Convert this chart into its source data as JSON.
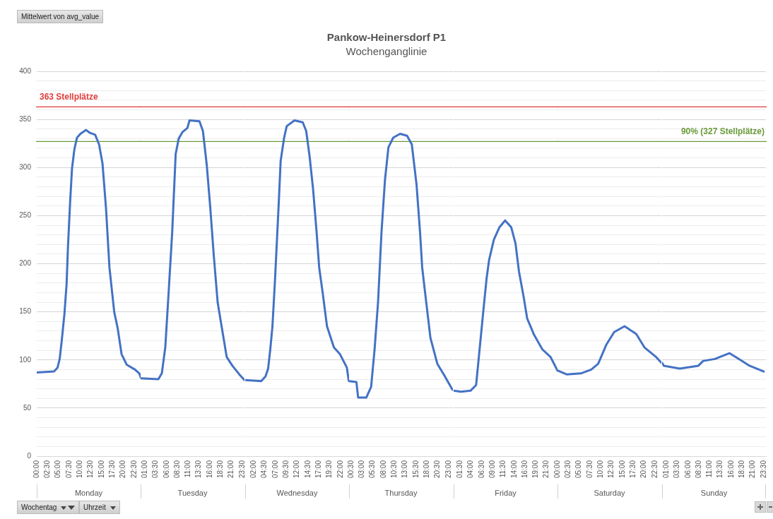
{
  "chart_data": [
    {
      "type": "line",
      "xlabel": "Monday",
      "x": [
        0,
        4.0,
        4.8,
        5.3,
        5.8,
        6.4,
        6.9,
        7.2,
        7.7,
        8.15,
        8.7,
        9.3,
        10.1,
        11.4,
        12.3,
        13.5,
        14.4,
        15.2,
        16.0,
        16.8,
        17.9,
        18.7,
        19.6,
        20.8,
        22.7,
        23.7,
        24
      ],
      "series": [
        {
          "color": "#4472c4",
          "values": [
            87,
            88,
            92,
            101,
            121,
            148,
            179,
            216,
            263,
            299,
            319,
            331,
            335,
            339,
            336,
            334,
            324,
            304,
            258,
            196,
            150,
            133,
            106,
            95,
            90,
            86,
            82
          ]
        }
      ],
      "xlim": [
        0,
        24
      ],
      "xticks": [
        {
          "value": 0,
          "label": "00:00"
        },
        {
          "value": 2.5,
          "label": "02:30"
        },
        {
          "value": 5,
          "label": "05:00"
        },
        {
          "value": 7.5,
          "label": "07:30"
        },
        {
          "value": 10,
          "label": "10:00"
        },
        {
          "value": 12.5,
          "label": "12:30"
        },
        {
          "value": 15,
          "label": "15:00"
        },
        {
          "value": 17.5,
          "label": "17:30"
        },
        {
          "value": 20,
          "label": "20:00"
        },
        {
          "value": 22.5,
          "label": "22:30"
        }
      ],
      "ylim": [
        0,
        400
      ],
      "yticks": [
        0,
        {
          "value": 10,
          "label": null
        },
        {
          "value": 20,
          "label": null
        },
        {
          "value": 30,
          "label": null
        },
        {
          "value": 40,
          "label": null
        },
        50,
        {
          "value": 60,
          "label": null
        },
        {
          "value": 70,
          "label": null
        },
        {
          "value": 80,
          "label": null
        },
        {
          "value": 90,
          "label": null
        },
        100,
        {
          "value": 110,
          "label": null
        },
        {
          "value": 120,
          "label": null
        },
        {
          "value": 130,
          "label": null
        },
        {
          "value": 140,
          "label": null
        },
        150,
        {
          "value": 160,
          "label": null
        },
        {
          "value": 170,
          "label": null
        },
        {
          "value": 180,
          "label": null
        },
        {
          "value": 190,
          "label": null
        },
        200,
        {
          "value": 210,
          "label": null
        },
        {
          "value": 220,
          "label": null
        },
        {
          "value": 230,
          "label": null
        },
        {
          "value": 240,
          "label": null
        },
        250,
        {
          "value": 260,
          "label": null
        },
        {
          "value": 270,
          "label": null
        },
        {
          "value": 280,
          "label": null
        },
        {
          "value": 290,
          "label": null
        },
        300,
        {
          "value": 310,
          "label": null
        },
        {
          "value": 320,
          "label": null
        },
        {
          "value": 330,
          "label": null
        },
        {
          "value": 340,
          "label": null
        },
        350,
        {
          "value": 360,
          "label": null
        },
        {
          "value": 370,
          "label": null
        },
        {
          "value": 380,
          "label": null
        },
        {
          "value": 390,
          "label": null
        },
        400
      ],
      "ref_lines": [
        {
          "axis": "y",
          "value": 363,
          "label": "363 Stellplätze",
          "color": "#e03c3c"
        },
        {
          "axis": "y",
          "value": 327,
          "color": "#6a9a3a"
        }
      ],
      "annotations": [
        "Mittelwert von avg_value",
        "Wochentag",
        "Uhrzeit"
      ],
      "grid": "y",
      "legend": false,
      "marker": "none",
      "line_style": "solid"
    },
    {
      "type": "line",
      "xlabel": "Tuesday",
      "x": [
        0,
        4.1,
        4.9,
        5.7,
        6.5,
        7.3,
        8.1,
        8.8,
        9.7,
        10.8,
        11.3,
        13.6,
        14.4,
        15.3,
        16.1,
        16.9,
        17.8,
        18.6,
        19.9,
        21.2,
        22.8,
        24
      ],
      "series": [
        {
          "color": "#4472c4",
          "values": [
            81,
            80,
            86,
            113,
            172,
            233,
            314,
            330,
            337,
            341,
            349,
            348,
            338,
            302,
            258,
            209,
            160,
            138,
            103,
            94,
            85,
            79
          ]
        }
      ],
      "xlim": [
        0,
        24
      ],
      "xticks": [
        {
          "value": 1,
          "label": "01:00"
        },
        {
          "value": 3.5,
          "label": "03:30"
        },
        {
          "value": 6,
          "label": "06:00"
        },
        {
          "value": 8.5,
          "label": "08:30"
        },
        {
          "value": 11,
          "label": "11:00"
        },
        {
          "value": 13.5,
          "label": "13:30"
        },
        {
          "value": 16,
          "label": "16:00"
        },
        {
          "value": 18.5,
          "label": "18:30"
        },
        {
          "value": 21,
          "label": "21:00"
        },
        {
          "value": 23.5,
          "label": "23:30"
        }
      ],
      "ylim": [
        0,
        400
      ],
      "yticks": [
        0,
        {
          "value": 10,
          "label": null
        },
        {
          "value": 20,
          "label": null
        },
        {
          "value": 30,
          "label": null
        },
        {
          "value": 40,
          "label": null
        },
        50,
        {
          "value": 60,
          "label": null
        },
        {
          "value": 70,
          "label": null
        },
        {
          "value": 80,
          "label": null
        },
        {
          "value": 90,
          "label": null
        },
        100,
        {
          "value": 110,
          "label": null
        },
        {
          "value": 120,
          "label": null
        },
        {
          "value": 130,
          "label": null
        },
        {
          "value": 140,
          "label": null
        },
        150,
        {
          "value": 160,
          "label": null
        },
        {
          "value": 170,
          "label": null
        },
        {
          "value": 180,
          "label": null
        },
        {
          "value": 190,
          "label": null
        },
        200,
        {
          "value": 210,
          "label": null
        },
        {
          "value": 220,
          "label": null
        },
        {
          "value": 230,
          "label": null
        },
        {
          "value": 240,
          "label": null
        },
        250,
        {
          "value": 260,
          "label": null
        },
        {
          "value": 270,
          "label": null
        },
        {
          "value": 280,
          "label": null
        },
        {
          "value": 290,
          "label": null
        },
        300,
        {
          "value": 310,
          "label": null
        },
        {
          "value": 320,
          "label": null
        },
        {
          "value": 330,
          "label": null
        },
        {
          "value": 340,
          "label": null
        },
        350,
        {
          "value": 360,
          "label": null
        },
        {
          "value": 370,
          "label": null
        },
        {
          "value": 380,
          "label": null
        },
        {
          "value": 390,
          "label": null
        },
        400
      ],
      "tick_labels": "x",
      "ref_lines": [
        {
          "axis": "y",
          "value": 363,
          "color": "#e03c3c"
        },
        {
          "axis": "y",
          "value": 327,
          "color": "#6a9a3a"
        }
      ],
      "grid": "y",
      "legend": false,
      "marker": "none",
      "line_style": "solid"
    },
    {
      "type": "line",
      "xlabel": "Wednesday",
      "x": [
        0,
        3.7,
        4.7,
        5.3,
        5.8,
        6.3,
        6.9,
        7.7,
        8.2,
        9.0,
        9.6,
        11.4,
        13.3,
        14.1,
        14.9,
        15.7,
        16.5,
        17.1,
        17.9,
        18.9,
        20.5,
        21.9,
        23.5,
        23.9,
        24
      ],
      "series": [
        {
          "color": "#4472c4",
          "values": [
            79,
            78,
            83,
            91,
            111,
            135,
            184,
            258,
            307,
            331,
            343,
            349,
            347,
            338,
            311,
            277,
            233,
            196,
            170,
            135,
            113,
            106,
            92,
            79,
            78
          ]
        }
      ],
      "xlim": [
        0,
        24
      ],
      "xticks": [
        {
          "value": 2,
          "label": "02:00"
        },
        {
          "value": 4.5,
          "label": "04:30"
        },
        {
          "value": 7,
          "label": "07:00"
        },
        {
          "value": 9.5,
          "label": "09:30"
        },
        {
          "value": 12,
          "label": "12:00"
        },
        {
          "value": 14.5,
          "label": "14:30"
        },
        {
          "value": 17,
          "label": "17:00"
        },
        {
          "value": 19.5,
          "label": "19:30"
        },
        {
          "value": 22,
          "label": "22:00"
        }
      ],
      "ylim": [
        0,
        400
      ],
      "yticks": [
        0,
        {
          "value": 10,
          "label": null
        },
        {
          "value": 20,
          "label": null
        },
        {
          "value": 30,
          "label": null
        },
        {
          "value": 40,
          "label": null
        },
        50,
        {
          "value": 60,
          "label": null
        },
        {
          "value": 70,
          "label": null
        },
        {
          "value": 80,
          "label": null
        },
        {
          "value": 90,
          "label": null
        },
        100,
        {
          "value": 110,
          "label": null
        },
        {
          "value": 120,
          "label": null
        },
        {
          "value": 130,
          "label": null
        },
        {
          "value": 140,
          "label": null
        },
        150,
        {
          "value": 160,
          "label": null
        },
        {
          "value": 170,
          "label": null
        },
        {
          "value": 180,
          "label": null
        },
        {
          "value": 190,
          "label": null
        },
        200,
        {
          "value": 210,
          "label": null
        },
        {
          "value": 220,
          "label": null
        },
        {
          "value": 230,
          "label": null
        },
        {
          "value": 240,
          "label": null
        },
        250,
        {
          "value": 260,
          "label": null
        },
        {
          "value": 270,
          "label": null
        },
        {
          "value": 280,
          "label": null
        },
        {
          "value": 290,
          "label": null
        },
        300,
        {
          "value": 310,
          "label": null
        },
        {
          "value": 320,
          "label": null
        },
        {
          "value": 330,
          "label": null
        },
        {
          "value": 340,
          "label": null
        },
        350,
        {
          "value": 360,
          "label": null
        },
        {
          "value": 370,
          "label": null
        },
        {
          "value": 380,
          "label": null
        },
        {
          "value": 390,
          "label": null
        },
        400
      ],
      "tick_labels": "x",
      "ref_lines": [
        {
          "axis": "y",
          "value": 363,
          "color": "#e03c3c"
        },
        {
          "axis": "y",
          "value": 327,
          "color": "#6a9a3a"
        }
      ],
      "grid": "y",
      "legend": false,
      "marker": "none",
      "line_style": "solid"
    },
    {
      "type": "line",
      "title": "Pankow-Heinersdorf P1",
      "subtitle": "Wochenganglinie",
      "xlabel": "Thursday",
      "x": [
        0,
        1.7,
        2.1,
        4.0,
        5.1,
        5.9,
        6.7,
        7.5,
        8.3,
        9.1,
        10.2,
        11.8,
        13.4,
        14.5,
        15.6,
        16.4,
        16.9,
        17.7,
        18.8,
        20.4,
        22.0,
        23.9,
        24
      ],
      "series": [
        {
          "color": "#4472c4",
          "values": [
            78,
            77,
            61,
            61,
            72,
            111,
            160,
            233,
            287,
            321,
            331,
            335,
            333,
            324,
            282,
            233,
            196,
            165,
            123,
            96,
            84,
            69,
            69
          ]
        }
      ],
      "xlim": [
        0,
        24
      ],
      "xticks": [
        {
          "value": 0.5,
          "label": "00:30"
        },
        {
          "value": 3,
          "label": "03:00"
        },
        {
          "value": 5.5,
          "label": "05:30"
        },
        {
          "value": 8,
          "label": "08:00"
        },
        {
          "value": 10.5,
          "label": "10:30"
        },
        {
          "value": 13,
          "label": "13:00"
        },
        {
          "value": 15.5,
          "label": "15:30"
        },
        {
          "value": 18,
          "label": "18:00"
        },
        {
          "value": 20.5,
          "label": "20:30"
        },
        {
          "value": 23,
          "label": "23:00"
        }
      ],
      "ylim": [
        0,
        400
      ],
      "yticks": [
        0,
        {
          "value": 10,
          "label": null
        },
        {
          "value": 20,
          "label": null
        },
        {
          "value": 30,
          "label": null
        },
        {
          "value": 40,
          "label": null
        },
        50,
        {
          "value": 60,
          "label": null
        },
        {
          "value": 70,
          "label": null
        },
        {
          "value": 80,
          "label": null
        },
        {
          "value": 90,
          "label": null
        },
        100,
        {
          "value": 110,
          "label": null
        },
        {
          "value": 120,
          "label": null
        },
        {
          "value": 130,
          "label": null
        },
        {
          "value": 140,
          "label": null
        },
        150,
        {
          "value": 160,
          "label": null
        },
        {
          "value": 170,
          "label": null
        },
        {
          "value": 180,
          "label": null
        },
        {
          "value": 190,
          "label": null
        },
        200,
        {
          "value": 210,
          "label": null
        },
        {
          "value": 220,
          "label": null
        },
        {
          "value": 230,
          "label": null
        },
        {
          "value": 240,
          "label": null
        },
        250,
        {
          "value": 260,
          "label": null
        },
        {
          "value": 270,
          "label": null
        },
        {
          "value": 280,
          "label": null
        },
        {
          "value": 290,
          "label": null
        },
        300,
        {
          "value": 310,
          "label": null
        },
        {
          "value": 320,
          "label": null
        },
        {
          "value": 330,
          "label": null
        },
        {
          "value": 340,
          "label": null
        },
        350,
        {
          "value": 360,
          "label": null
        },
        {
          "value": 370,
          "label": null
        },
        {
          "value": 380,
          "label": null
        },
        {
          "value": 390,
          "label": null
        },
        400
      ],
      "tick_labels": "x",
      "ref_lines": [
        {
          "axis": "y",
          "value": 363,
          "color": "#e03c3c"
        },
        {
          "axis": "y",
          "value": 327,
          "color": "#6a9a3a"
        }
      ],
      "grid": "y",
      "legend": false,
      "marker": "none",
      "line_style": "solid"
    },
    {
      "type": "line",
      "xlabel": "Friday",
      "x": [
        0,
        1.7,
        3.9,
        5.2,
        6.0,
        6.8,
        7.6,
        8.2,
        9.3,
        10.6,
        11.9,
        13.3,
        14.3,
        15.1,
        16.2,
        17.0,
        18.6,
        20.5,
        22.4,
        24
      ],
      "series": [
        {
          "color": "#4472c4",
          "values": [
            68,
            67,
            68,
            74,
            111,
            148,
            184,
            204,
            225,
            238,
            245,
            238,
            221,
            192,
            165,
            143,
            126,
            111,
            103,
            89
          ]
        }
      ],
      "xlim": [
        0,
        24
      ],
      "xticks": [
        {
          "value": 1.5,
          "label": "01:30"
        },
        {
          "value": 4,
          "label": "04:00"
        },
        {
          "value": 6.5,
          "label": "06:30"
        },
        {
          "value": 9,
          "label": "09:00"
        },
        {
          "value": 11.5,
          "label": "11:30"
        },
        {
          "value": 14,
          "label": "14:00"
        },
        {
          "value": 16.5,
          "label": "16:30"
        },
        {
          "value": 19,
          "label": "19:00"
        },
        {
          "value": 21.5,
          "label": "21:30"
        }
      ],
      "ylim": [
        0,
        400
      ],
      "yticks": [
        0,
        {
          "value": 10,
          "label": null
        },
        {
          "value": 20,
          "label": null
        },
        {
          "value": 30,
          "label": null
        },
        {
          "value": 40,
          "label": null
        },
        50,
        {
          "value": 60,
          "label": null
        },
        {
          "value": 70,
          "label": null
        },
        {
          "value": 80,
          "label": null
        },
        {
          "value": 90,
          "label": null
        },
        100,
        {
          "value": 110,
          "label": null
        },
        {
          "value": 120,
          "label": null
        },
        {
          "value": 130,
          "label": null
        },
        {
          "value": 140,
          "label": null
        },
        150,
        {
          "value": 160,
          "label": null
        },
        {
          "value": 170,
          "label": null
        },
        {
          "value": 180,
          "label": null
        },
        {
          "value": 190,
          "label": null
        },
        200,
        {
          "value": 210,
          "label": null
        },
        {
          "value": 220,
          "label": null
        },
        {
          "value": 230,
          "label": null
        },
        {
          "value": 240,
          "label": null
        },
        250,
        {
          "value": 260,
          "label": null
        },
        {
          "value": 270,
          "label": null
        },
        {
          "value": 280,
          "label": null
        },
        {
          "value": 290,
          "label": null
        },
        300,
        {
          "value": 310,
          "label": null
        },
        {
          "value": 320,
          "label": null
        },
        {
          "value": 330,
          "label": null
        },
        {
          "value": 340,
          "label": null
        },
        350,
        {
          "value": 360,
          "label": null
        },
        {
          "value": 370,
          "label": null
        },
        {
          "value": 380,
          "label": null
        },
        {
          "value": 390,
          "label": null
        },
        400
      ],
      "tick_labels": "x",
      "ref_lines": [
        {
          "axis": "y",
          "value": 363,
          "color": "#e03c3c"
        },
        {
          "axis": "y",
          "value": 327,
          "color": "#6a9a3a"
        }
      ],
      "grid": "y",
      "legend": false,
      "marker": "none",
      "line_style": "solid"
    },
    {
      "type": "line",
      "xlabel": "Saturday",
      "x": [
        0,
        2.1,
        5.4,
        7.8,
        9.4,
        11.3,
        13.1,
        15.5,
        18.2,
        20.1,
        22.8,
        24
      ],
      "series": [
        {
          "color": "#4472c4",
          "values": [
            89,
            85,
            86,
            90,
            96,
            116,
            129,
            135,
            127,
            113,
            103,
            97
          ]
        }
      ],
      "xlim": [
        0,
        24
      ],
      "xticks": [
        {
          "value": 0,
          "label": "00:00"
        },
        {
          "value": 2.5,
          "label": "02:30"
        },
        {
          "value": 5,
          "label": "05:00"
        },
        {
          "value": 7.5,
          "label": "07:30"
        },
        {
          "value": 10,
          "label": "10:00"
        },
        {
          "value": 12.5,
          "label": "12:30"
        },
        {
          "value": 15,
          "label": "15:00"
        },
        {
          "value": 17.5,
          "label": "17:30"
        },
        {
          "value": 20,
          "label": "20:00"
        },
        {
          "value": 22.5,
          "label": "22:30"
        }
      ],
      "ylim": [
        0,
        400
      ],
      "yticks": [
        0,
        {
          "value": 10,
          "label": null
        },
        {
          "value": 20,
          "label": null
        },
        {
          "value": 30,
          "label": null
        },
        {
          "value": 40,
          "label": null
        },
        50,
        {
          "value": 60,
          "label": null
        },
        {
          "value": 70,
          "label": null
        },
        {
          "value": 80,
          "label": null
        },
        {
          "value": 90,
          "label": null
        },
        100,
        {
          "value": 110,
          "label": null
        },
        {
          "value": 120,
          "label": null
        },
        {
          "value": 130,
          "label": null
        },
        {
          "value": 140,
          "label": null
        },
        150,
        {
          "value": 160,
          "label": null
        },
        {
          "value": 170,
          "label": null
        },
        {
          "value": 180,
          "label": null
        },
        {
          "value": 190,
          "label": null
        },
        200,
        {
          "value": 210,
          "label": null
        },
        {
          "value": 220,
          "label": null
        },
        {
          "value": 230,
          "label": null
        },
        {
          "value": 240,
          "label": null
        },
        250,
        {
          "value": 260,
          "label": null
        },
        {
          "value": 270,
          "label": null
        },
        {
          "value": 280,
          "label": null
        },
        {
          "value": 290,
          "label": null
        },
        300,
        {
          "value": 310,
          "label": null
        },
        {
          "value": 320,
          "label": null
        },
        {
          "value": 330,
          "label": null
        },
        {
          "value": 340,
          "label": null
        },
        350,
        {
          "value": 360,
          "label": null
        },
        {
          "value": 370,
          "label": null
        },
        {
          "value": 380,
          "label": null
        },
        {
          "value": 390,
          "label": null
        },
        400
      ],
      "tick_labels": "x",
      "ref_lines": [
        {
          "axis": "y",
          "value": 363,
          "color": "#e03c3c"
        },
        {
          "axis": "y",
          "value": 327,
          "color": "#6a9a3a"
        }
      ],
      "grid": "y",
      "legend": false,
      "marker": "none",
      "line_style": "solid"
    },
    {
      "type": "line",
      "xlabel": "Sunday",
      "x": [
        0,
        0.4,
        4.1,
        8.4,
        9.5,
        12.2,
        15.6,
        18.1,
        20.2,
        23.5
      ],
      "series": [
        {
          "color": "#4472c4",
          "values": [
            97,
            94,
            91,
            94,
            99,
            101,
            107,
            100,
            94,
            88
          ]
        }
      ],
      "xlim": [
        0,
        24
      ],
      "xticks": [
        {
          "value": 1,
          "label": "01:00"
        },
        {
          "value": 3.5,
          "label": "03:30"
        },
        {
          "value": 6,
          "label": "06:00"
        },
        {
          "value": 8.5,
          "label": "08:30"
        },
        {
          "value": 11,
          "label": "11:00"
        },
        {
          "value": 13.5,
          "label": "13:30"
        },
        {
          "value": 16,
          "label": "16:00"
        },
        {
          "value": 18.5,
          "label": "18:30"
        },
        {
          "value": 21,
          "label": "21:00"
        },
        {
          "value": 23.5,
          "label": "23:30"
        }
      ],
      "ylim": [
        0,
        400
      ],
      "yticks": [
        0,
        {
          "value": 10,
          "label": null
        },
        {
          "value": 20,
          "label": null
        },
        {
          "value": 30,
          "label": null
        },
        {
          "value": 40,
          "label": null
        },
        50,
        {
          "value": 60,
          "label": null
        },
        {
          "value": 70,
          "label": null
        },
        {
          "value": 80,
          "label": null
        },
        {
          "value": 90,
          "label": null
        },
        100,
        {
          "value": 110,
          "label": null
        },
        {
          "value": 120,
          "label": null
        },
        {
          "value": 130,
          "label": null
        },
        {
          "value": 140,
          "label": null
        },
        150,
        {
          "value": 160,
          "label": null
        },
        {
          "value": 170,
          "label": null
        },
        {
          "value": 180,
          "label": null
        },
        {
          "value": 190,
          "label": null
        },
        200,
        {
          "value": 210,
          "label": null
        },
        {
          "value": 220,
          "label": null
        },
        {
          "value": 230,
          "label": null
        },
        {
          "value": 240,
          "label": null
        },
        250,
        {
          "value": 260,
          "label": null
        },
        {
          "value": 270,
          "label": null
        },
        {
          "value": 280,
          "label": null
        },
        {
          "value": 290,
          "label": null
        },
        300,
        {
          "value": 310,
          "label": null
        },
        {
          "value": 320,
          "label": null
        },
        {
          "value": 330,
          "label": null
        },
        {
          "value": 340,
          "label": null
        },
        350,
        {
          "value": 360,
          "label": null
        },
        {
          "value": 370,
          "label": null
        },
        {
          "value": 380,
          "label": null
        },
        {
          "value": 390,
          "label": null
        },
        400
      ],
      "tick_labels": "x",
      "ref_lines": [
        {
          "axis": "y",
          "value": 363,
          "color": "#e03c3c"
        },
        {
          "axis": "y",
          "value": 327,
          "label": "90% (327 Stellplätze)",
          "color": "#6a9a3a"
        }
      ],
      "grid": "y",
      "legend": false,
      "marker": "none",
      "line_style": "solid"
    }
  ]
}
